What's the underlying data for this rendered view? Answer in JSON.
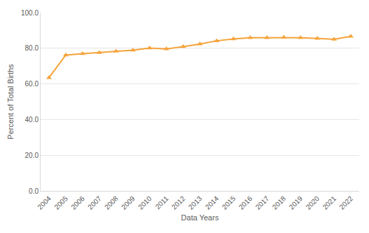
{
  "chart_data": {
    "type": "line",
    "x_label": "Data Years",
    "y_label": "Percent of Total Births",
    "categories": [
      "2004",
      "2005",
      "2006",
      "2007",
      "2008",
      "2009",
      "2010",
      "2011",
      "2012",
      "2013",
      "2014",
      "2015",
      "2016",
      "2017",
      "2018",
      "2019",
      "2020",
      "2021",
      "2022"
    ],
    "values": [
      63.5,
      76.2,
      77.0,
      77.6,
      78.3,
      78.9,
      80.1,
      79.6,
      80.9,
      82.4,
      84.2,
      85.2,
      85.9,
      85.9,
      86.1,
      85.9,
      85.5,
      85.0,
      86.7
    ],
    "color": "#f5a33a",
    "marker": "triangle",
    "line_style": "solid",
    "ylim": [
      0,
      100
    ],
    "yticks": [
      {
        "value": 0,
        "label": "0.0"
      },
      {
        "value": 20,
        "label": "20.0"
      },
      {
        "value": 40,
        "label": "40.0"
      },
      {
        "value": 60,
        "label": "60.0"
      },
      {
        "value": 80,
        "label": "80.0"
      },
      {
        "value": 100,
        "label": "100.0"
      }
    ],
    "grid": true
  }
}
